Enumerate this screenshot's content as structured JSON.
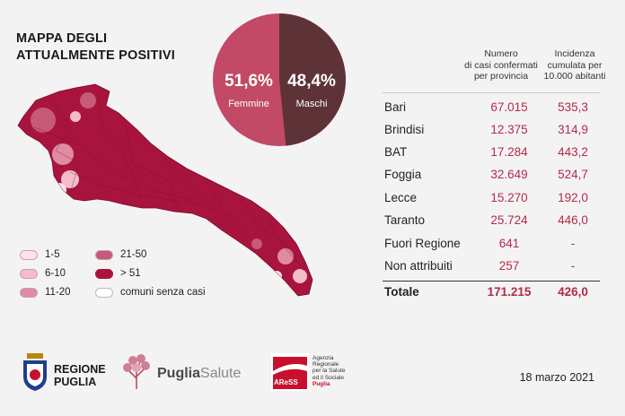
{
  "title_line1": "MAPPA DEGLI",
  "title_line2": "ATTUALMENTE POSITIVI",
  "gender": {
    "female_pct": "51,6%",
    "female_label": "Femmine",
    "male_pct": "48,4%",
    "male_label": "Maschi",
    "female_color": "#c24a66",
    "male_color": "#5e3338"
  },
  "legend": [
    {
      "label": "1-5",
      "color": "#fbe3e8"
    },
    {
      "label": "6-10",
      "color": "#f3bccb"
    },
    {
      "label": "11-20",
      "color": "#e08aa3"
    },
    {
      "label": "21-50",
      "color": "#c65a78"
    },
    {
      "label": "> 51",
      "color": "#a8143d"
    },
    {
      "label": "comuni senza casi",
      "color": "#ffffff"
    }
  ],
  "table": {
    "col1_header": [
      "Numero",
      "di casi confermati",
      "per provincia"
    ],
    "col2_header": [
      "Incidenza",
      "cumulata per",
      "10.000 abitanti"
    ],
    "rows": [
      {
        "name": "Bari",
        "cases": "67.015",
        "incidence": "535,3"
      },
      {
        "name": "Brindisi",
        "cases": "12.375",
        "incidence": "314,9"
      },
      {
        "name": "BAT",
        "cases": "17.284",
        "incidence": "443,2"
      },
      {
        "name": "Foggia",
        "cases": "32.649",
        "incidence": "524,7"
      },
      {
        "name": "Lecce",
        "cases": "15.270",
        "incidence": "192,0"
      },
      {
        "name": "Taranto",
        "cases": "25.724",
        "incidence": "446,0"
      },
      {
        "name": "Fuori Regione",
        "cases": "641",
        "incidence": "-"
      },
      {
        "name": "Non attribuiti",
        "cases": "257",
        "incidence": "-"
      }
    ],
    "total": {
      "name": "Totale",
      "cases": "171.215",
      "incidence": "426,0"
    },
    "value_color": "#b22a4a"
  },
  "logos": {
    "regione_line1": "REGIONE",
    "regione_line2": "PUGLIA",
    "puglia_salute_1": "Puglia",
    "puglia_salute_2": "Salute",
    "aress_mark": "AReSS",
    "aress_text": [
      "Agenzia",
      "Regionale",
      "per la Salute",
      "ed il Sociale",
      "Puglia"
    ]
  },
  "date": "18 marzo 2021"
}
